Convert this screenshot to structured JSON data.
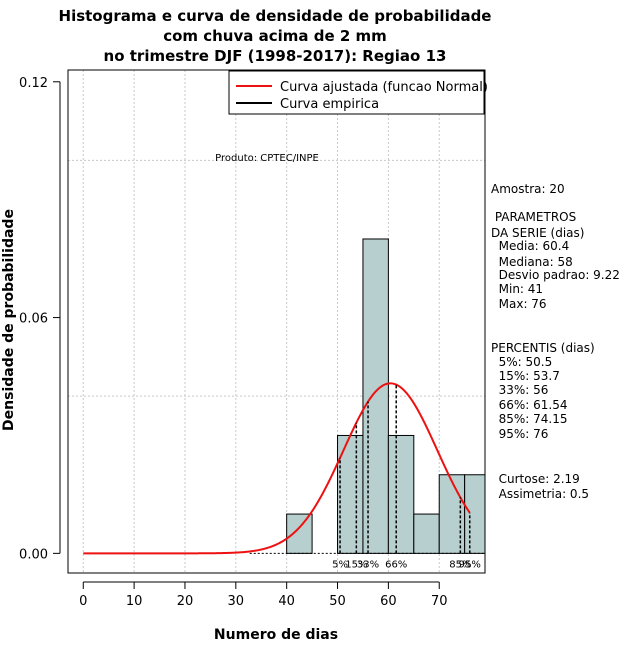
{
  "chart_data": {
    "type": "histogram",
    "title": [
      "Histograma e curva de densidade de probabilidade",
      "com chuva acima de 2 mm",
      "no trimestre DJF (1998-2017): Regiao 13"
    ],
    "xlabel": "Numero de dias",
    "ylabel": "Densidade de probabilidade",
    "xlim": [
      -3,
      79
    ],
    "ylim": [
      -0.005,
      0.123
    ],
    "x_ticks": [
      0,
      10,
      20,
      30,
      40,
      50,
      60,
      70
    ],
    "y_ticks": [
      0.0,
      0.06,
      0.12
    ],
    "y_tick_labels": [
      "0.00",
      "0.06",
      "0.12"
    ],
    "bins": [
      {
        "start": 40,
        "end": 45,
        "density": 0.01
      },
      {
        "start": 45,
        "end": 50,
        "density": 0.0
      },
      {
        "start": 50,
        "end": 55,
        "density": 0.03
      },
      {
        "start": 55,
        "end": 60,
        "density": 0.08
      },
      {
        "start": 60,
        "end": 65,
        "density": 0.03
      },
      {
        "start": 65,
        "end": 70,
        "density": 0.01
      },
      {
        "start": 70,
        "end": 75,
        "density": 0.02
      },
      {
        "start": 75,
        "end": 80,
        "density": 0.02
      }
    ],
    "fitted_curve": {
      "name": "Curva ajustada (funcao Normal)",
      "mean": 60.4,
      "sd": 9.22,
      "x_range": [
        0,
        76
      ],
      "color": "#ee1111"
    },
    "empirical_curve": {
      "name": "Curva empirica",
      "color": "#000000"
    },
    "percentiles": [
      {
        "label": "5%",
        "value": 50.5
      },
      {
        "label": "15%",
        "value": 53.7
      },
      {
        "label": "33%",
        "value": 56
      },
      {
        "label": "66%",
        "value": 61.54
      },
      {
        "label": "85%",
        "value": 74.15
      },
      {
        "label": "95%",
        "value": 76
      }
    ],
    "horizontal_gridlines": [
      0.04,
      0.1
    ],
    "bar_color": "#b8cfcf",
    "legend_position": "top-right"
  },
  "annotations": {
    "product": "Produto: CPTEC/INPE",
    "sample": "Amostra: 20",
    "param_header_1": " PARAMETROS",
    "param_header_2": "DA SERIE (dias)",
    "media": "  Media: 60.4",
    "mediana": "  Mediana: 58",
    "desvio": "  Desvio padrao: 9.22",
    "min": "  Min: 41",
    "max": "  Max: 76",
    "perc_header": "PERCENTIS (dias)",
    "p5": "  5%: 50.5",
    "p15": "  15%: 53.7",
    "p33": "  33%: 56",
    "p66": "  66%: 61.54",
    "p85": "  85%: 74.15",
    "p95": "  95%: 76",
    "curtose": "  Curtose: 2.19",
    "assimetria": "  Assimetria: 0.5"
  }
}
